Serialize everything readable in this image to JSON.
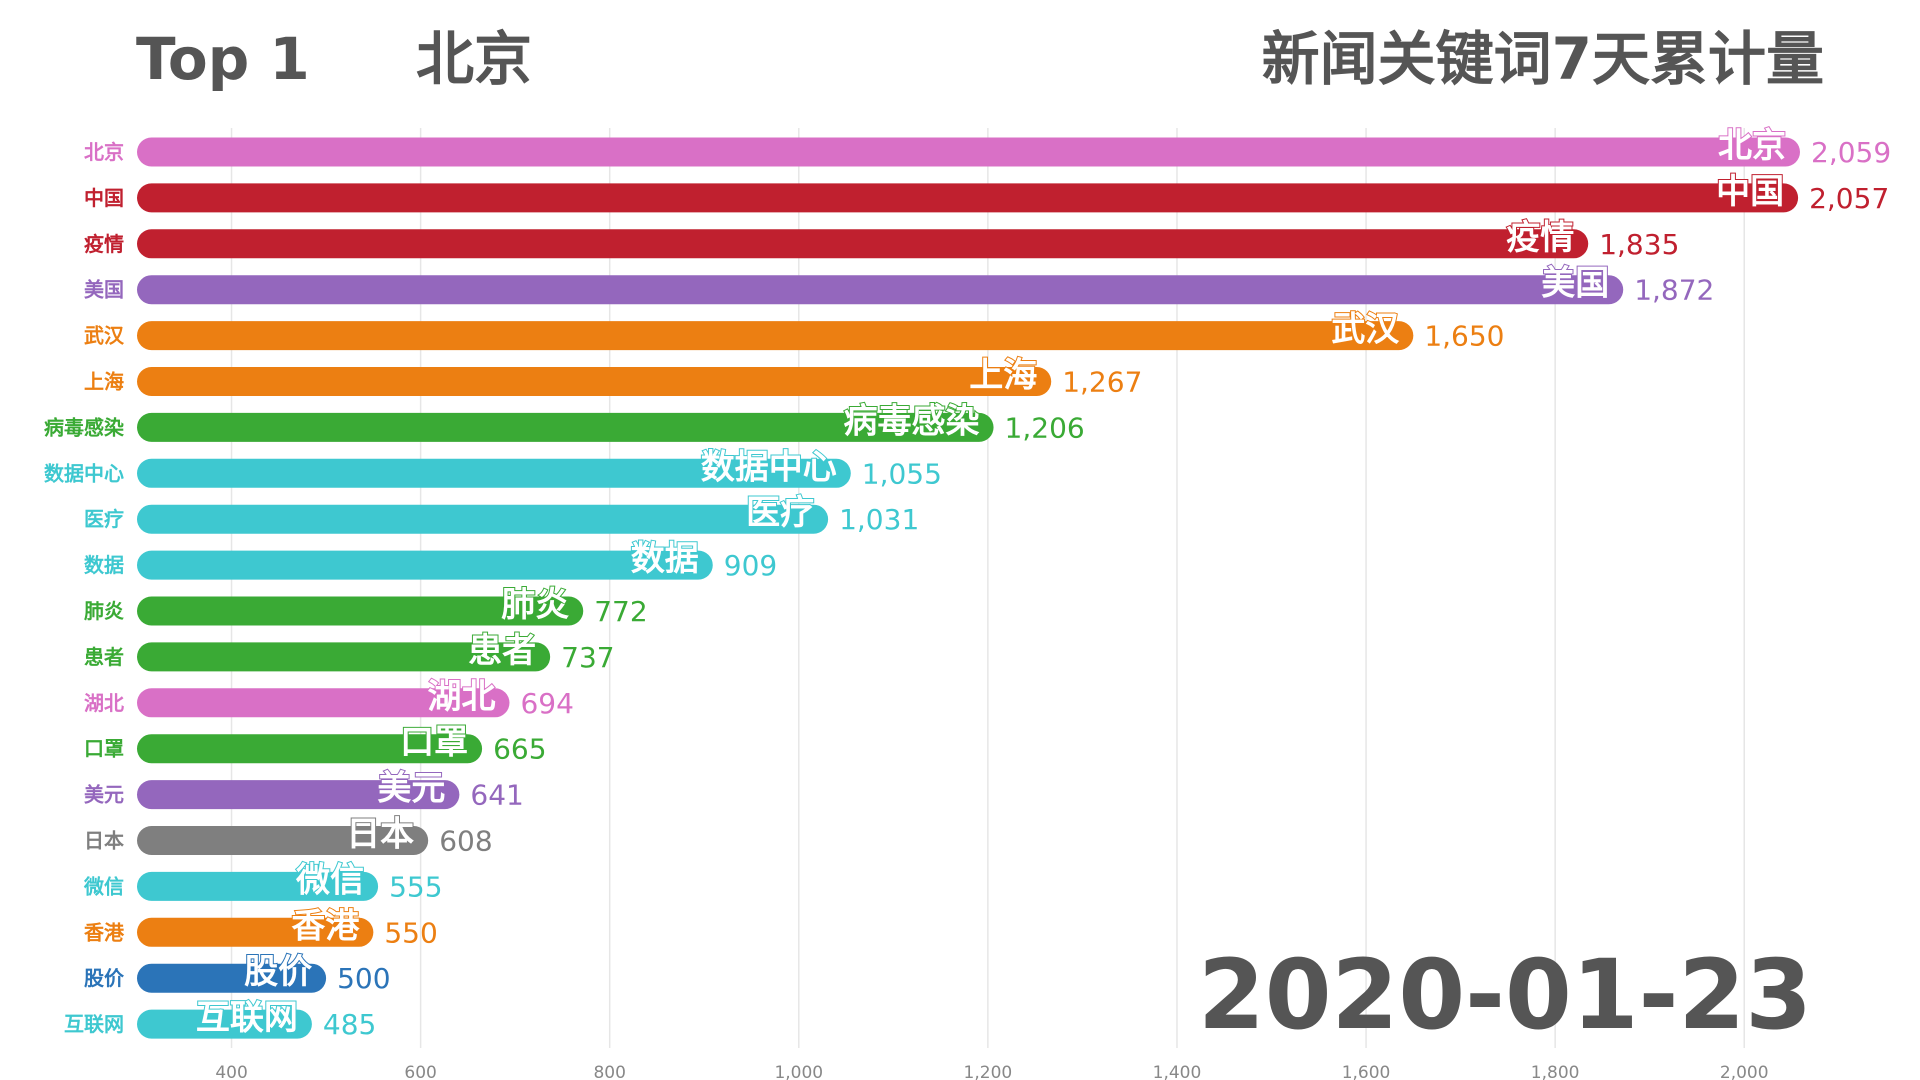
{
  "header": {
    "top_rank": "Top 1",
    "top_keyword": "北京",
    "title": "新闻关键词7天累计量"
  },
  "date": "2020-01-23",
  "chart_data": {
    "type": "bar",
    "orientation": "horizontal",
    "title": "新闻关键词7天累计量",
    "categories": [
      "北京",
      "中国",
      "疫情",
      "美国",
      "武汉",
      "上海",
      "病毒感染",
      "数据中心",
      "医疗",
      "数据",
      "肺炎",
      "患者",
      "湖北",
      "口罩",
      "美元",
      "日本",
      "微信",
      "香港",
      "股价",
      "互联网"
    ],
    "values": [
      2059,
      2057,
      1835,
      1872,
      1650,
      1267,
      1206,
      1055,
      1031,
      909,
      772,
      737,
      694,
      665,
      641,
      608,
      555,
      550,
      500,
      485
    ],
    "value_labels": [
      "2,059",
      "2,057",
      "1,835",
      "1,872",
      "1,650",
      "1,267",
      "1,206",
      "1,055",
      "1,031",
      "909",
      "772",
      "737",
      "694",
      "665",
      "641",
      "608",
      "555",
      "550",
      "500",
      "485"
    ],
    "colors": [
      "#d970c6",
      "#c0202f",
      "#c0202f",
      "#9467bd",
      "#ec7f12",
      "#ec7f12",
      "#3aaa35",
      "#3ec8d0",
      "#3ec8d0",
      "#3ec8d0",
      "#3aaa35",
      "#3aaa35",
      "#d970c6",
      "#3aaa35",
      "#9467bd",
      "#7f7f7f",
      "#3ec8d0",
      "#ec7f12",
      "#2b74b8",
      "#3ec8d0"
    ],
    "xlim": [
      300,
      2059
    ],
    "xticks": [
      400,
      600,
      800,
      1000,
      1200,
      1400,
      1600,
      1800,
      2000
    ],
    "xtick_labels": [
      "400",
      "600",
      "800",
      "1,000",
      "1,200",
      "1,400",
      "1,600",
      "1,800",
      "2,000"
    ],
    "grid": true
  }
}
